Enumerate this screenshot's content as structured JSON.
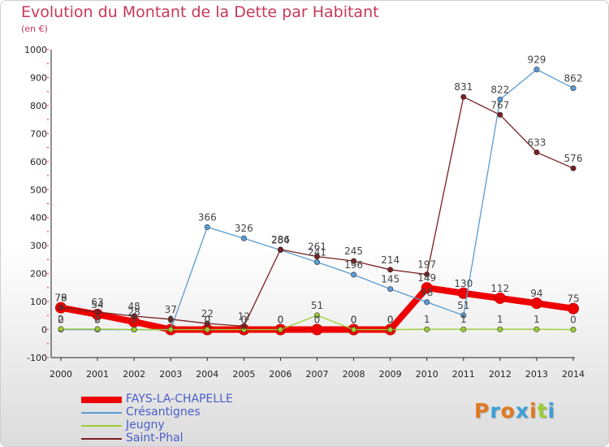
{
  "chart_data": {
    "type": "line",
    "title": "Evolution du Montant de la Dette par Habitant",
    "subtitle": "(en €)",
    "xlabel": "",
    "ylabel": "",
    "x": [
      "2000",
      "2001",
      "2002",
      "2003",
      "2004",
      "2005",
      "2006",
      "2007",
      "2008",
      "2009",
      "2010",
      "2011",
      "2012",
      "2013",
      "2014"
    ],
    "ylim": [
      -100,
      1000
    ],
    "yticks": [
      "-100",
      "0",
      "100",
      "200",
      "300",
      "400",
      "500",
      "600",
      "700",
      "800",
      "900",
      "1000"
    ],
    "grid": false,
    "legend_position": "bottom-left",
    "series": [
      {
        "name": "FAYS-LA-CHAPELLE",
        "color": "#ee0000",
        "values": [
          78,
          54,
          28,
          0,
          0,
          0,
          0,
          0,
          0,
          0,
          149,
          130,
          112,
          94,
          75
        ],
        "labels": [
          "78",
          "54",
          "28",
          "0",
          "0",
          "0",
          "0",
          "0",
          "0",
          "0",
          "149",
          "130",
          "112",
          "94",
          "75"
        ]
      },
      {
        "name": "Crésantignes",
        "color": "#5a9bd4",
        "values": [
          0,
          0,
          0,
          0,
          366,
          326,
          284,
          241,
          196,
          145,
          98,
          51,
          822,
          929,
          862
        ],
        "labels": [
          "0",
          "0",
          "0",
          "0",
          "366",
          "326",
          "284",
          "241",
          "196",
          "145",
          "98",
          "51",
          "822",
          "929",
          "862"
        ]
      },
      {
        "name": "Jeugny",
        "color": "#9acd32",
        "values": [
          2,
          2,
          0,
          0,
          0,
          0,
          0,
          51,
          0,
          0,
          1,
          1,
          1,
          1,
          0
        ],
        "labels": [
          "2",
          "2",
          "",
          "",
          "0",
          "",
          "0",
          "51",
          "0",
          "0",
          "1",
          "1",
          "1",
          "1",
          "0"
        ]
      },
      {
        "name": "Saint-Phal",
        "color": "#7a1f22",
        "values": [
          79,
          63,
          48,
          37,
          22,
          12,
          286,
          261,
          245,
          214,
          197,
          831,
          767,
          633,
          576
        ],
        "labels": [
          "79",
          "63",
          "48",
          "37",
          "22",
          "12",
          "286",
          "261",
          "245",
          "214",
          "197",
          "831",
          "767",
          "633",
          "576"
        ]
      }
    ]
  },
  "logo": {
    "text": "Proxiti",
    "colors": [
      "#e07a1f",
      "#3aa0d8",
      "#e07a1f",
      "#3aa0d8",
      "#e07a1f",
      "#9acd32",
      "#3aa0d8"
    ]
  }
}
